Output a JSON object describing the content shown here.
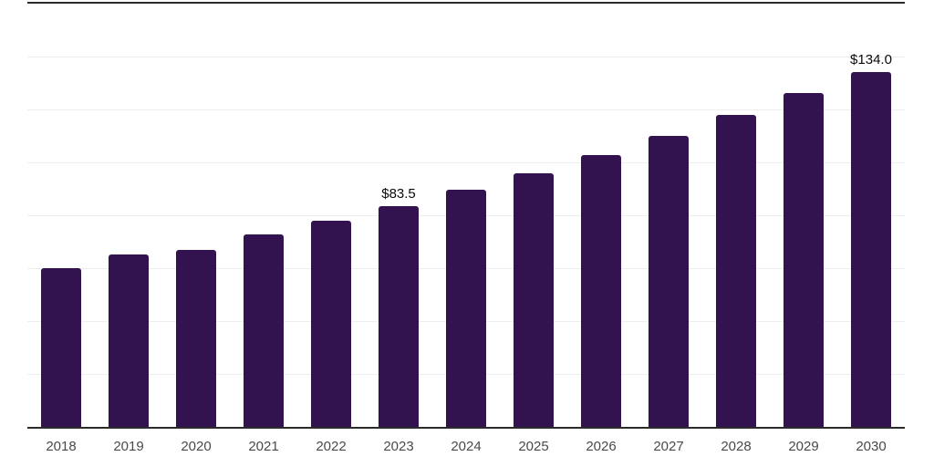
{
  "chart_data": {
    "type": "bar",
    "title": "",
    "xlabel": "",
    "ylabel": "",
    "categories": [
      "2018",
      "2019",
      "2020",
      "2021",
      "2022",
      "2023",
      "2024",
      "2025",
      "2026",
      "2027",
      "2028",
      "2029",
      "2030"
    ],
    "values": [
      60.0,
      65.3,
      67.0,
      72.6,
      78.1,
      83.5,
      89.5,
      96.0,
      102.9,
      110.1,
      118.0,
      126.1,
      134.0
    ],
    "data_labels": {
      "2023": "$83.5",
      "2030": "$134.0"
    },
    "ylim": [
      0,
      160
    ],
    "grid_step": 20,
    "gridlines": "horizontal",
    "legend": "none",
    "colors": {
      "bar": "#321350",
      "axis_line": "#2b2b2b",
      "gridline": "#eeeeee",
      "value_label": "#0a0a0a",
      "tick_label": "#4a4a4a"
    }
  }
}
